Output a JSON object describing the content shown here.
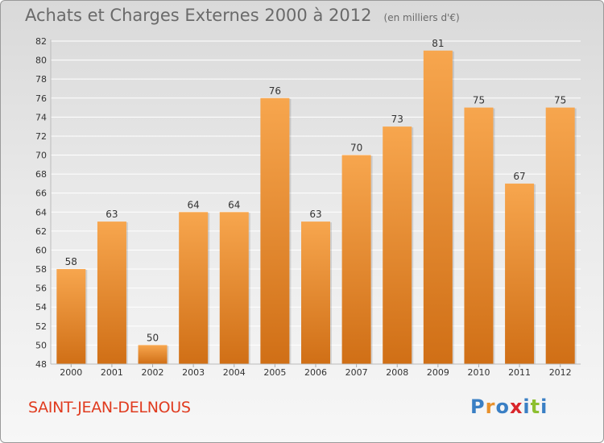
{
  "title": "Achats et Charges Externes 2000 à 2012",
  "unit_note": "(en milliers d'€)",
  "commune": "SAINT-JEAN-DELNOUS",
  "logo": {
    "text": "Proxiti",
    "letter_colors": [
      "#3a7fc4",
      "#e8912c",
      "#3a7fc4",
      "#d9262b",
      "#3a7fc4",
      "#8dbf2f",
      "#3a7fc4"
    ]
  },
  "colors": {
    "bar_light": "#f7a64e",
    "bar_dark": "#d06f16",
    "grid": "#ffffff",
    "text": "#333333"
  },
  "chart_data": {
    "type": "bar",
    "title": "Achats et Charges Externes 2000 à 2012",
    "categories": [
      "2000",
      "2001",
      "2002",
      "2003",
      "2004",
      "2005",
      "2006",
      "2007",
      "2008",
      "2009",
      "2010",
      "2011",
      "2012"
    ],
    "values": [
      58,
      63,
      50,
      64,
      64,
      76,
      63,
      70,
      73,
      81,
      75,
      67,
      75
    ],
    "data_labels": [
      "58",
      "63",
      "50",
      "64",
      "64",
      "76",
      "63",
      "70",
      "73",
      "81",
      "75",
      "67",
      "75"
    ],
    "ylim": [
      48,
      82
    ],
    "yticks": [
      "48",
      "50",
      "52",
      "54",
      "56",
      "58",
      "60",
      "62",
      "64",
      "66",
      "68",
      "70",
      "72",
      "74",
      "76",
      "78",
      "80",
      "82"
    ],
    "grid": true,
    "xlabel": "",
    "ylabel": ""
  }
}
